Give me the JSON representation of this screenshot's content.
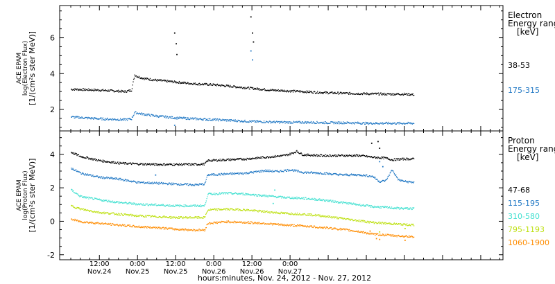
{
  "chart_data": [
    {
      "type": "scatter",
      "ylabel_lines": [
        "ACE EPAM",
        "log(Electron Flux)",
        "[1/(cm²s ster MeV)]"
      ],
      "ylim": [
        0.8,
        7.8
      ],
      "yticks": [
        2,
        4,
        6
      ],
      "legend_title_lines": [
        "Electron",
        "Energy ranges",
        "[keV]"
      ],
      "series": [
        {
          "name": "38-53",
          "color": "#000000",
          "points": [
            [
              -9,
              3.15
            ],
            [
              0,
              3.1
            ],
            [
              8,
              3.02
            ],
            [
              10,
              3.1
            ],
            [
              11,
              3.95
            ],
            [
              12,
              3.85
            ],
            [
              14,
              3.75
            ],
            [
              18,
              3.65
            ],
            [
              24,
              3.55
            ],
            [
              30,
              3.45
            ],
            [
              36,
              3.4
            ],
            [
              42,
              3.3
            ],
            [
              48,
              3.2
            ],
            [
              54,
              3.1
            ],
            [
              60,
              3.05
            ],
            [
              66,
              3.0
            ],
            [
              72,
              2.95
            ],
            [
              78,
              2.92
            ],
            [
              84,
              2.9
            ],
            [
              90,
              2.88
            ],
            [
              96,
              2.88
            ],
            [
              99,
              2.85
            ]
          ],
          "spikes": [
            [
              23.5,
              6.3
            ],
            [
              24.0,
              5.7
            ],
            [
              24.2,
              5.1
            ],
            [
              47.5,
              7.2
            ],
            [
              48.0,
              6.3
            ],
            [
              48.3,
              5.8
            ]
          ]
        },
        {
          "name": "175-315",
          "color": "#1f77c4",
          "points": [
            [
              -9,
              1.6
            ],
            [
              0,
              1.5
            ],
            [
              8,
              1.45
            ],
            [
              10,
              1.5
            ],
            [
              11,
              1.85
            ],
            [
              14,
              1.75
            ],
            [
              18,
              1.65
            ],
            [
              24,
              1.55
            ],
            [
              30,
              1.5
            ],
            [
              36,
              1.45
            ],
            [
              42,
              1.4
            ],
            [
              48,
              1.35
            ],
            [
              54,
              1.32
            ],
            [
              60,
              1.3
            ],
            [
              66,
              1.3
            ],
            [
              72,
              1.28
            ],
            [
              78,
              1.28
            ],
            [
              84,
              1.25
            ],
            [
              90,
              1.25
            ],
            [
              96,
              1.25
            ],
            [
              99,
              1.25
            ]
          ],
          "spikes": [
            [
              23.5,
              1.15
            ],
            [
              47.5,
              5.3
            ],
            [
              48.0,
              4.8
            ]
          ]
        }
      ]
    },
    {
      "type": "scatter",
      "ylabel_lines": [
        "ACE EPAM",
        "log(Proton Flux)",
        "[1/(cm²s ster MeV)]"
      ],
      "ylim": [
        -2.3,
        5.4
      ],
      "yticks": [
        -2,
        0,
        2,
        4
      ],
      "legend_title_lines": [
        "Proton",
        "Energy ranges",
        "[keV]"
      ],
      "series": [
        {
          "name": "47-68",
          "color": "#000000",
          "points": [
            [
              -9,
              4.15
            ],
            [
              -6,
              3.9
            ],
            [
              0,
              3.65
            ],
            [
              6,
              3.5
            ],
            [
              12,
              3.45
            ],
            [
              18,
              3.42
            ],
            [
              24,
              3.42
            ],
            [
              30,
              3.42
            ],
            [
              33,
              3.45
            ],
            [
              34,
              3.65
            ],
            [
              40,
              3.7
            ],
            [
              46,
              3.75
            ],
            [
              52,
              3.85
            ],
            [
              58,
              3.95
            ],
            [
              60,
              4.05
            ],
            [
              62,
              4.2
            ],
            [
              64,
              4.0
            ],
            [
              70,
              3.95
            ],
            [
              76,
              3.95
            ],
            [
              82,
              3.95
            ],
            [
              86,
              3.85
            ],
            [
              90,
              3.8
            ],
            [
              92,
              3.7
            ],
            [
              96,
              3.75
            ],
            [
              99,
              3.75
            ]
          ],
          "spikes": [
            [
              85.5,
              4.7
            ],
            [
              87.5,
              4.8
            ],
            [
              88,
              4.4
            ]
          ]
        },
        {
          "name": "115-195",
          "color": "#1f77c4",
          "points": [
            [
              -9,
              3.2
            ],
            [
              -6,
              2.9
            ],
            [
              0,
              2.65
            ],
            [
              6,
              2.55
            ],
            [
              12,
              2.35
            ],
            [
              18,
              2.3
            ],
            [
              24,
              2.25
            ],
            [
              30,
              2.2
            ],
            [
              33,
              2.25
            ],
            [
              34,
              2.8
            ],
            [
              40,
              2.85
            ],
            [
              46,
              2.9
            ],
            [
              52,
              3.05
            ],
            [
              56,
              3.0
            ],
            [
              60,
              3.1
            ],
            [
              64,
              2.95
            ],
            [
              70,
              2.9
            ],
            [
              76,
              2.8
            ],
            [
              82,
              2.8
            ],
            [
              86,
              2.7
            ],
            [
              88,
              2.4
            ],
            [
              90,
              2.45
            ],
            [
              92,
              3.1
            ],
            [
              94,
              2.5
            ],
            [
              96,
              2.4
            ],
            [
              99,
              2.35
            ]
          ],
          "spikes": [
            [
              17.5,
              2.8
            ],
            [
              88,
              3.6
            ],
            [
              89,
              3.3
            ]
          ]
        },
        {
          "name": "310-580",
          "color": "#40e0d0",
          "points": [
            [
              -9,
              1.9
            ],
            [
              -6,
              1.5
            ],
            [
              0,
              1.3
            ],
            [
              6,
              1.15
            ],
            [
              12,
              1.05
            ],
            [
              18,
              1.0
            ],
            [
              24,
              0.95
            ],
            [
              30,
              0.95
            ],
            [
              33,
              0.95
            ],
            [
              34,
              1.65
            ],
            [
              40,
              1.7
            ],
            [
              46,
              1.65
            ],
            [
              52,
              1.55
            ],
            [
              58,
              1.45
            ],
            [
              64,
              1.4
            ],
            [
              70,
              1.3
            ],
            [
              76,
              1.15
            ],
            [
              82,
              1.0
            ],
            [
              86,
              0.9
            ],
            [
              90,
              0.85
            ],
            [
              94,
              0.8
            ],
            [
              99,
              0.78
            ]
          ],
          "spikes": [
            [
              54.5,
              1.1
            ],
            [
              55,
              1.9
            ]
          ]
        },
        {
          "name": "795-1193",
          "color": "#bde00f",
          "points": [
            [
              -9,
              0.95
            ],
            [
              -6,
              0.75
            ],
            [
              0,
              0.55
            ],
            [
              6,
              0.45
            ],
            [
              12,
              0.35
            ],
            [
              18,
              0.3
            ],
            [
              24,
              0.25
            ],
            [
              30,
              0.25
            ],
            [
              33,
              0.25
            ],
            [
              34,
              0.7
            ],
            [
              40,
              0.75
            ],
            [
              46,
              0.7
            ],
            [
              52,
              0.6
            ],
            [
              58,
              0.5
            ],
            [
              64,
              0.45
            ],
            [
              70,
              0.35
            ],
            [
              76,
              0.2
            ],
            [
              82,
              0.05
            ],
            [
              86,
              -0.05
            ],
            [
              90,
              -0.1
            ],
            [
              94,
              -0.15
            ],
            [
              99,
              -0.2
            ]
          ],
          "spikes": [
            [
              88,
              -0.6
            ],
            [
              96,
              -0.4
            ]
          ]
        },
        {
          "name": "1060-1900",
          "color": "#ff8c00",
          "points": [
            [
              -9,
              0.15
            ],
            [
              -6,
              0.0
            ],
            [
              0,
              -0.1
            ],
            [
              6,
              -0.2
            ],
            [
              12,
              -0.3
            ],
            [
              18,
              -0.35
            ],
            [
              24,
              -0.45
            ],
            [
              30,
              -0.5
            ],
            [
              33,
              -0.5
            ],
            [
              34,
              -0.1
            ],
            [
              40,
              0.0
            ],
            [
              46,
              -0.05
            ],
            [
              52,
              -0.1
            ],
            [
              58,
              -0.2
            ],
            [
              64,
              -0.25
            ],
            [
              70,
              -0.35
            ],
            [
              76,
              -0.45
            ],
            [
              82,
              -0.6
            ],
            [
              86,
              -0.75
            ],
            [
              90,
              -0.8
            ],
            [
              94,
              -0.85
            ],
            [
              99,
              -0.9
            ]
          ],
          "spikes": [
            [
              85,
              -0.55
            ],
            [
              87,
              -1.0
            ],
            [
              88,
              -1.05
            ],
            [
              96,
              -1.1
            ]
          ]
        }
      ]
    }
  ],
  "time_axis": {
    "xlim": [
      -12.5,
      127
    ],
    "major_hours": [
      0,
      12,
      24,
      36,
      48,
      60,
      72,
      84,
      96,
      108,
      120
    ],
    "ticks": [
      {
        "hour": 0,
        "time": "12:00",
        "date": "Nov.24"
      },
      {
        "hour": 12,
        "time": "0:00",
        "date": "Nov.25"
      },
      {
        "hour": 24,
        "time": "12:00",
        "date": "Nov.25"
      },
      {
        "hour": 36,
        "time": "0:00",
        "date": "Nov.26"
      },
      {
        "hour": 48,
        "time": "12:00",
        "date": "Nov.26"
      },
      {
        "hour": 60,
        "time": "0:00",
        "date": "Nov.27"
      }
    ],
    "xlabel": "hours:minutes, Nov. 24, 2012 - Nov. 27, 2012"
  }
}
